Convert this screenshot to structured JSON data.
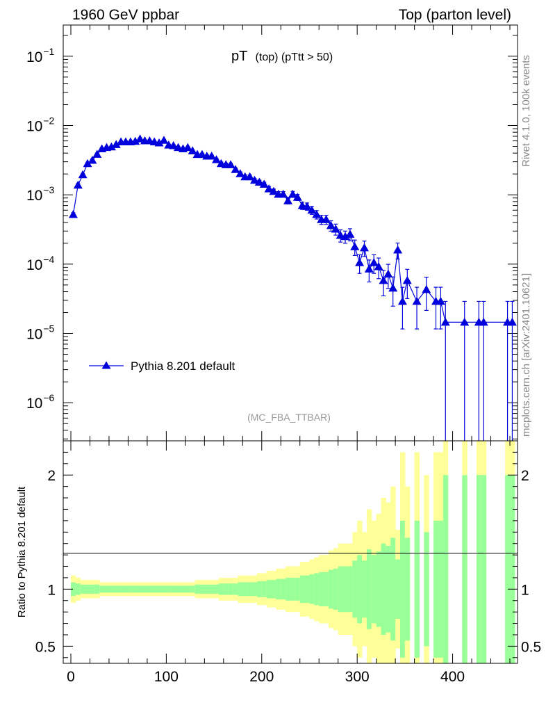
{
  "header": {
    "left": "1960 GeV ppbar",
    "right": "Top (parton level)"
  },
  "side_text": {
    "rivet": "Rivet 4.1.0,  100k events",
    "mcplots": "mcplots.cern.ch [arXiv:2401.10621]"
  },
  "chart_data": {
    "type": "line",
    "title": "pT",
    "title_detail": "(top) (pTtt > 50)",
    "watermark": "(MC_FBA_TTBAR)",
    "legend": {
      "label": "Pythia 8.201 default",
      "position": "bottom-left"
    },
    "series": [
      {
        "name": "Pythia 8.201 default",
        "color": "#0000dd",
        "marker": "triangle-up",
        "x": [
          2.5,
          7.5,
          12.5,
          17.5,
          22.5,
          27.5,
          32.5,
          37.5,
          42.5,
          47.5,
          52.5,
          57.5,
          62.5,
          67.5,
          72.5,
          77.5,
          82.5,
          87.5,
          92.5,
          97.5,
          102.5,
          107.5,
          112.5,
          117.5,
          122.5,
          127.5,
          132.5,
          137.5,
          142.5,
          147.5,
          152.5,
          157.5,
          162.5,
          167.5,
          172.5,
          177.5,
          182.5,
          187.5,
          192.5,
          197.5,
          202.5,
          207.5,
          212.5,
          217.5,
          222.5,
          227.5,
          232.5,
          237.5,
          242.5,
          247.5,
          252.5,
          257.5,
          262.5,
          267.5,
          272.5,
          277.5,
          282.5,
          287.5,
          292.5,
          297.5,
          302.5,
          307.5,
          312.5,
          317.5,
          322.5,
          327.5,
          332.5,
          337.5,
          342.5,
          347.5,
          352.5,
          362.5,
          372.5,
          382.5,
          387.5,
          392.5,
          412.5,
          427.5,
          432.5,
          457.5,
          462.5
        ],
        "y": [
          0.00052,
          0.00138,
          0.00195,
          0.00282,
          0.00315,
          0.00385,
          0.00462,
          0.00482,
          0.00492,
          0.00532,
          0.00582,
          0.00582,
          0.00582,
          0.00592,
          0.00642,
          0.00602,
          0.00602,
          0.00582,
          0.00562,
          0.00612,
          0.00522,
          0.00512,
          0.00482,
          0.00462,
          0.00482,
          0.00432,
          0.00382,
          0.00382,
          0.00362,
          0.00362,
          0.00322,
          0.00282,
          0.00272,
          0.00272,
          0.00232,
          0.00202,
          0.00182,
          0.00182,
          0.00162,
          0.00152,
          0.00142,
          0.00122,
          0.00112,
          0.00102,
          0.00102,
          0.00082,
          0.00102,
          0.00092,
          0.0007,
          0.00068,
          0.0006,
          0.00052,
          0.00044,
          0.00044,
          0.00036,
          0.00032,
          0.00026,
          0.00025,
          0.00027,
          0.000178,
          0.000105,
          0.000172,
          8.5e-05,
          0.000105,
          9.2e-05,
          5.8e-05,
          7.2e-05,
          4.5e-05,
          0.00016,
          2.9e-05,
          5.8e-05,
          2.9e-05,
          4.3e-05,
          2.9e-05,
          2.9e-05,
          1.45e-05,
          1.45e-05,
          1.45e-05,
          1.45e-05,
          1.45e-05,
          1.45e-05
        ],
        "yerr_rel": [
          0.06,
          0.05,
          0.04,
          0.04,
          0.04,
          0.04,
          0.03,
          0.03,
          0.03,
          0.03,
          0.03,
          0.03,
          0.03,
          0.03,
          0.03,
          0.03,
          0.03,
          0.03,
          0.03,
          0.03,
          0.03,
          0.03,
          0.03,
          0.03,
          0.03,
          0.03,
          0.04,
          0.04,
          0.04,
          0.04,
          0.04,
          0.05,
          0.05,
          0.05,
          0.05,
          0.06,
          0.06,
          0.06,
          0.06,
          0.07,
          0.07,
          0.08,
          0.08,
          0.09,
          0.09,
          0.1,
          0.1,
          0.1,
          0.12,
          0.12,
          0.13,
          0.14,
          0.15,
          0.15,
          0.17,
          0.18,
          0.2,
          0.2,
          0.2,
          0.25,
          0.3,
          0.25,
          0.35,
          0.3,
          0.33,
          0.4,
          0.38,
          0.45,
          0.26,
          0.6,
          0.45,
          0.6,
          0.5,
          0.6,
          0.6,
          1.0,
          1.0,
          1.0,
          1.0,
          1.0,
          1.0
        ]
      }
    ],
    "main_axes": {
      "xlim": [
        -8,
        468
      ],
      "ylim_log10": [
        -6.55,
        -0.55
      ],
      "yticks": [
        {
          "exp": -6,
          "label": "10",
          "sup": "−6"
        },
        {
          "exp": -5,
          "label": "10",
          "sup": "−5"
        },
        {
          "exp": -4,
          "label": "10",
          "sup": "−4"
        },
        {
          "exp": -3,
          "label": "10",
          "sup": "−3"
        },
        {
          "exp": -2,
          "label": "10",
          "sup": "−2"
        },
        {
          "exp": -1,
          "label": "10",
          "sup": "−1"
        }
      ]
    },
    "ratio": {
      "ylabel": "Ratio to Pythia 8.201 default",
      "ylim": [
        0.35,
        2.3
      ],
      "yticks": [
        {
          "value": 0.5,
          "label": "0.5"
        },
        {
          "value": 1,
          "label": "1"
        },
        {
          "value": 2,
          "label": "2"
        }
      ],
      "band_inner_color": "#99ff99",
      "band_outer_color": "#ffff99"
    },
    "xticks": [
      {
        "value": 0,
        "label": "0"
      },
      {
        "value": 100,
        "label": "100"
      },
      {
        "value": 200,
        "label": "200"
      },
      {
        "value": 300,
        "label": "300"
      },
      {
        "value": 400,
        "label": "400"
      }
    ]
  }
}
